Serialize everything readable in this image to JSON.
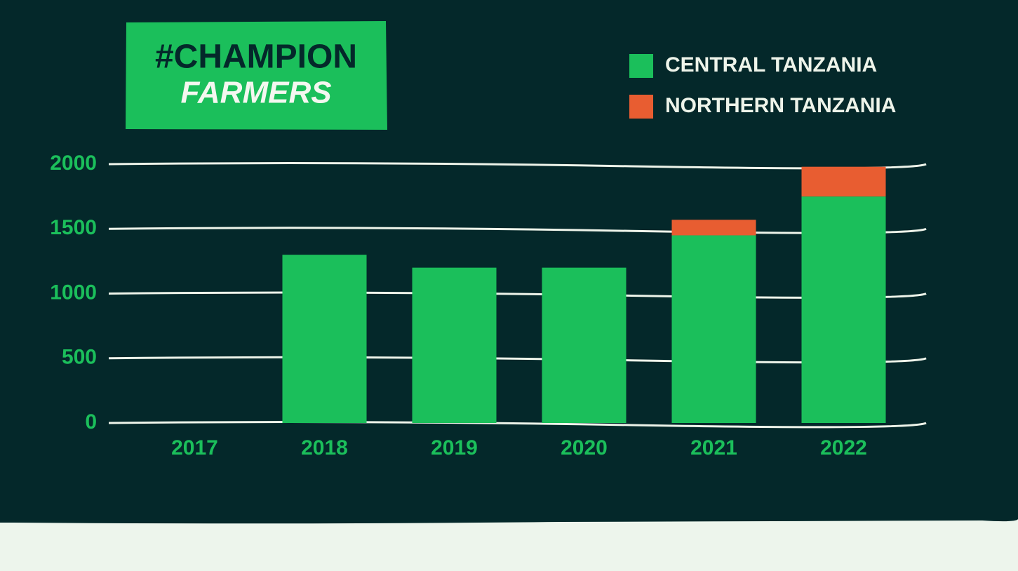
{
  "logo": {
    "line1": "#CHAMPION",
    "line2": "FARMERS"
  },
  "chart_data": {
    "type": "stacked_bar",
    "categories": [
      "2017",
      "2018",
      "2019",
      "2020",
      "2021",
      "2022"
    ],
    "series": [
      {
        "name": "CENTRAL TANZANIA",
        "color": "#1bbf5b",
        "values": [
          0,
          1300,
          1200,
          1200,
          1450,
          1750
        ]
      },
      {
        "name": "NORTHERN TANZANIA",
        "color": "#e85d31",
        "values": [
          0,
          0,
          0,
          0,
          120,
          230
        ]
      }
    ],
    "ylim": [
      0,
      2000
    ],
    "yticks": [
      0,
      500,
      1000,
      1500,
      2000
    ],
    "grid": true,
    "legend": "top-right"
  }
}
